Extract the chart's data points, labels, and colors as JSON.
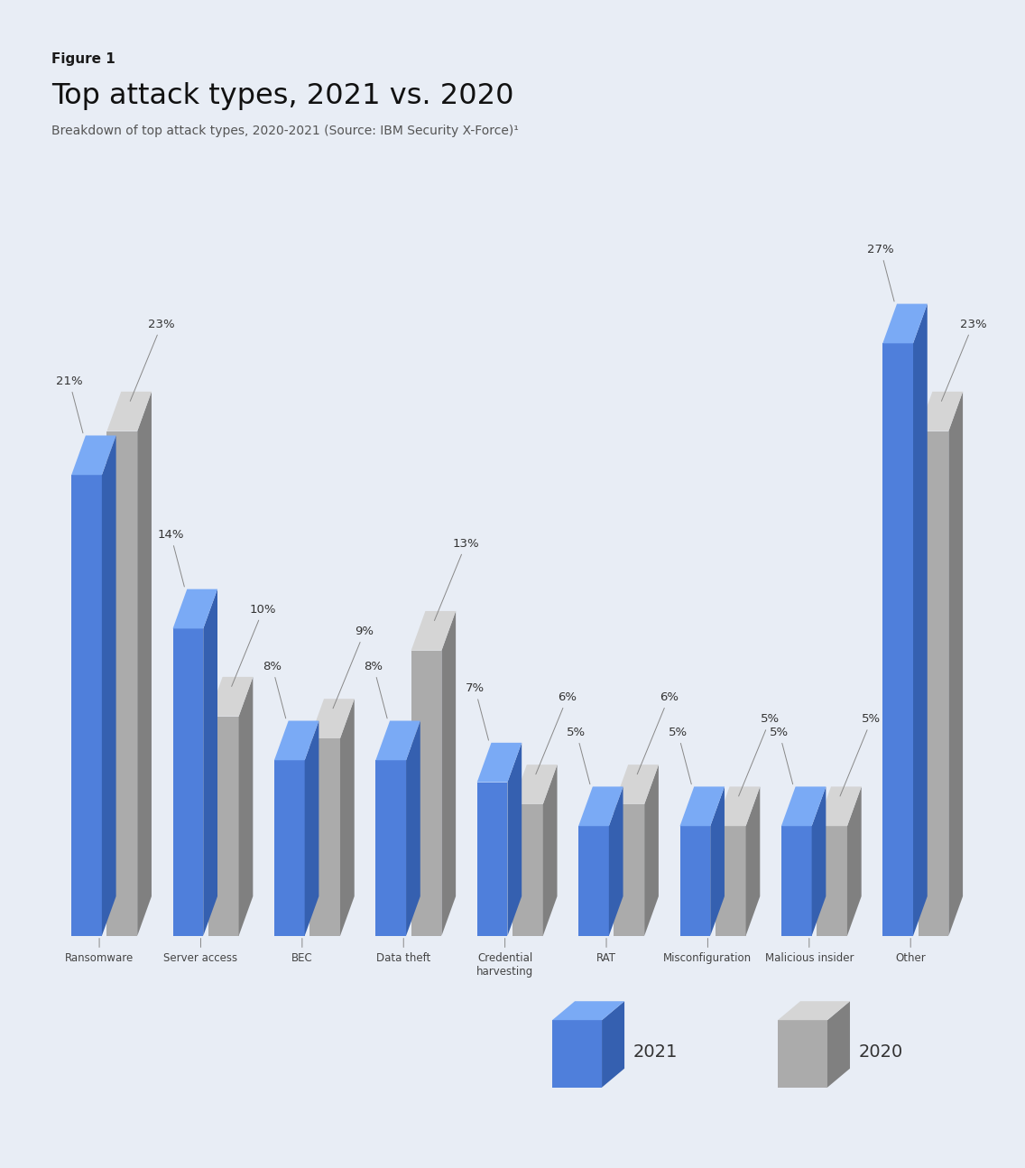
{
  "figure_label": "Figure 1",
  "title": "Top attack types, 2021 vs. 2020",
  "subtitle": "Breakdown of top attack types, 2020-2021 (Source: IBM Security X-Force)¹",
  "background_color": "#e8edf5",
  "categories": [
    "Ransomware",
    "Server access",
    "BEC",
    "Data theft",
    "Credential\nharvesting",
    "RAT",
    "Misconfiguration",
    "Malicious insider",
    "Other"
  ],
  "values_2021": [
    21,
    14,
    8,
    8,
    7,
    5,
    5,
    5,
    27
  ],
  "values_2020": [
    23,
    10,
    9,
    13,
    6,
    6,
    5,
    5,
    23
  ],
  "blue_front": "#4F7FDB",
  "blue_top": "#7AAAF5",
  "blue_side": "#3560B0",
  "gray_front": "#ABABAB",
  "gray_top": "#D5D5D5",
  "gray_side": "#808080",
  "label_color": "#444444",
  "pct_color": "#333333",
  "line_color": "#888888"
}
